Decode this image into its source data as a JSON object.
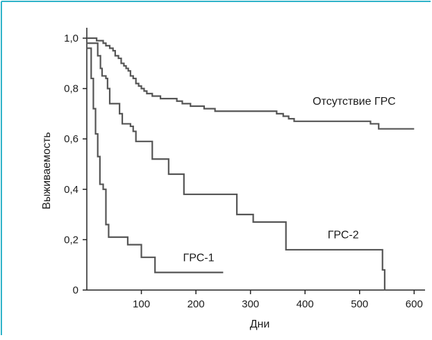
{
  "chart_data": {
    "type": "line",
    "step": true,
    "xlabel": "Дни",
    "ylabel": "Выживаемость",
    "xlim": [
      0,
      620
    ],
    "ylim": [
      0,
      1.05
    ],
    "x_ticks": [
      100,
      200,
      300,
      400,
      500,
      600
    ],
    "y_ticks": [
      0,
      0.2,
      0.4,
      0.6,
      0.8,
      1.0
    ],
    "y_tick_labels": [
      "0",
      "0,2",
      "0,4",
      "0,6",
      "0,8",
      "1,0"
    ],
    "grid": false,
    "frame_color": "#2fb3c9",
    "line_color": "#555555",
    "series": [
      {
        "name": "Отсутствие ГРС",
        "points": [
          [
            0,
            1.0
          ],
          [
            12,
            1.0
          ],
          [
            18,
            0.99
          ],
          [
            30,
            0.98
          ],
          [
            35,
            0.97
          ],
          [
            42,
            0.96
          ],
          [
            48,
            0.95
          ],
          [
            52,
            0.93
          ],
          [
            58,
            0.92
          ],
          [
            63,
            0.9
          ],
          [
            68,
            0.89
          ],
          [
            72,
            0.88
          ],
          [
            76,
            0.87
          ],
          [
            80,
            0.85
          ],
          [
            85,
            0.84
          ],
          [
            90,
            0.82
          ],
          [
            95,
            0.81
          ],
          [
            100,
            0.8
          ],
          [
            105,
            0.79
          ],
          [
            110,
            0.78
          ],
          [
            120,
            0.77
          ],
          [
            135,
            0.76
          ],
          [
            150,
            0.76
          ],
          [
            165,
            0.75
          ],
          [
            175,
            0.74
          ],
          [
            190,
            0.73
          ],
          [
            205,
            0.73
          ],
          [
            215,
            0.72
          ],
          [
            225,
            0.72
          ],
          [
            235,
            0.71
          ],
          [
            340,
            0.71
          ],
          [
            348,
            0.7
          ],
          [
            360,
            0.69
          ],
          [
            370,
            0.68
          ],
          [
            380,
            0.67
          ],
          [
            515,
            0.67
          ],
          [
            520,
            0.66
          ],
          [
            535,
            0.64
          ],
          [
            600,
            0.64
          ]
        ]
      },
      {
        "name": "ГРС-2",
        "points": [
          [
            0,
            0.98
          ],
          [
            15,
            0.98
          ],
          [
            20,
            0.93
          ],
          [
            25,
            0.88
          ],
          [
            28,
            0.85
          ],
          [
            35,
            0.84
          ],
          [
            38,
            0.8
          ],
          [
            42,
            0.74
          ],
          [
            60,
            0.7
          ],
          [
            65,
            0.66
          ],
          [
            80,
            0.65
          ],
          [
            85,
            0.63
          ],
          [
            90,
            0.59
          ],
          [
            115,
            0.59
          ],
          [
            120,
            0.52
          ],
          [
            145,
            0.52
          ],
          [
            150,
            0.46
          ],
          [
            170,
            0.46
          ],
          [
            178,
            0.38
          ],
          [
            270,
            0.38
          ],
          [
            275,
            0.3
          ],
          [
            300,
            0.3
          ],
          [
            305,
            0.27
          ],
          [
            360,
            0.27
          ],
          [
            365,
            0.16
          ],
          [
            540,
            0.16
          ],
          [
            542,
            0.08
          ],
          [
            546,
            0.0
          ]
        ]
      },
      {
        "name": "ГРС-1",
        "points": [
          [
            0,
            0.96
          ],
          [
            5,
            0.96
          ],
          [
            8,
            0.84
          ],
          [
            12,
            0.72
          ],
          [
            16,
            0.62
          ],
          [
            20,
            0.53
          ],
          [
            24,
            0.42
          ],
          [
            30,
            0.4
          ],
          [
            35,
            0.26
          ],
          [
            40,
            0.21
          ],
          [
            70,
            0.21
          ],
          [
            75,
            0.18
          ],
          [
            95,
            0.18
          ],
          [
            100,
            0.13
          ],
          [
            120,
            0.13
          ],
          [
            125,
            0.07
          ],
          [
            250,
            0.07
          ]
        ]
      }
    ],
    "annotations": [
      {
        "series": 0,
        "text": "Отсутствие ГРС",
        "x": 490,
        "y": 0.735
      },
      {
        "series": 1,
        "text": "ГРС-2",
        "x": 470,
        "y": 0.205
      },
      {
        "series": 2,
        "text": "ГРС-1",
        "x": 205,
        "y": 0.115
      }
    ]
  }
}
